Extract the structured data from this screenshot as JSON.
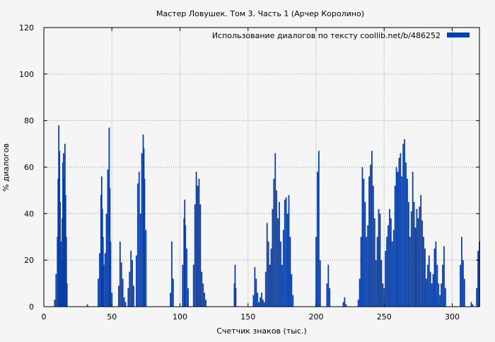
{
  "chart_data": {
    "type": "bar",
    "title": "Мастер Ловушек. Том 3. Часть 1 (Арчер Королино)",
    "xlabel": "Счетчик знаков (тыс.)",
    "ylabel": "% диалогов",
    "xlim": [
      0,
      320
    ],
    "ylim": [
      0,
      120
    ],
    "xticks": [
      0,
      50,
      100,
      150,
      200,
      250,
      300
    ],
    "yticks": [
      0,
      20,
      40,
      60,
      80,
      100,
      120
    ],
    "grid": true,
    "legend_position": "top-right",
    "colors": {
      "bar": "#0a3fa6",
      "grid": "#999999",
      "background": "#f5f5f5"
    },
    "series": [
      {
        "name": "Использование диалогов по тексту  coollib.net/b/486252",
        "points": [
          [
            8,
            3
          ],
          [
            9,
            14
          ],
          [
            10,
            30
          ],
          [
            10.5,
            55
          ],
          [
            11,
            78
          ],
          [
            11.5,
            67
          ],
          [
            12,
            45
          ],
          [
            12.5,
            28
          ],
          [
            13,
            20
          ],
          [
            13.5,
            38
          ],
          [
            14,
            62
          ],
          [
            14.5,
            66
          ],
          [
            15,
            55
          ],
          [
            15.5,
            70
          ],
          [
            16,
            48
          ],
          [
            16.5,
            30
          ],
          [
            17,
            10
          ],
          [
            32,
            1
          ],
          [
            40,
            12
          ],
          [
            41,
            23
          ],
          [
            42,
            48
          ],
          [
            42.5,
            56
          ],
          [
            43,
            42
          ],
          [
            43.5,
            30
          ],
          [
            44,
            18
          ],
          [
            45,
            23
          ],
          [
            46,
            40
          ],
          [
            47,
            59
          ],
          [
            48,
            77
          ],
          [
            48.5,
            51
          ],
          [
            49,
            28
          ],
          [
            50,
            6
          ],
          [
            55,
            9
          ],
          [
            56,
            28
          ],
          [
            57,
            19
          ],
          [
            58,
            12
          ],
          [
            59,
            4
          ],
          [
            60,
            2
          ],
          [
            62,
            8
          ],
          [
            63,
            15
          ],
          [
            64,
            24
          ],
          [
            65,
            20
          ],
          [
            66,
            9
          ],
          [
            68,
            22
          ],
          [
            69,
            53
          ],
          [
            70,
            58
          ],
          [
            71,
            40
          ],
          [
            72,
            66
          ],
          [
            73,
            74
          ],
          [
            73.5,
            68
          ],
          [
            74,
            55
          ],
          [
            75,
            33
          ],
          [
            93,
            6
          ],
          [
            94,
            28
          ],
          [
            95,
            12
          ],
          [
            102,
            18
          ],
          [
            103,
            38
          ],
          [
            103.5,
            46
          ],
          [
            104,
            35
          ],
          [
            105,
            25
          ],
          [
            106,
            8
          ],
          [
            110,
            18
          ],
          [
            111,
            44
          ],
          [
            112,
            58
          ],
          [
            113,
            52
          ],
          [
            114,
            55
          ],
          [
            115,
            44
          ],
          [
            116,
            15
          ],
          [
            117,
            10
          ],
          [
            118,
            6
          ],
          [
            119,
            3
          ],
          [
            140,
            10
          ],
          [
            140.5,
            18
          ],
          [
            141,
            8
          ],
          [
            154,
            5
          ],
          [
            155,
            17
          ],
          [
            156,
            12
          ],
          [
            157,
            6
          ],
          [
            158,
            2
          ],
          [
            159,
            4
          ],
          [
            160,
            6
          ],
          [
            161,
            3
          ],
          [
            162,
            2
          ],
          [
            163,
            15
          ],
          [
            164,
            36
          ],
          [
            165,
            28
          ],
          [
            166,
            18
          ],
          [
            167,
            25
          ],
          [
            168,
            42
          ],
          [
            169,
            55
          ],
          [
            170,
            66
          ],
          [
            171,
            50
          ],
          [
            172,
            38
          ],
          [
            173,
            45
          ],
          [
            174,
            28
          ],
          [
            175,
            18
          ],
          [
            176,
            33
          ],
          [
            177,
            46
          ],
          [
            178,
            47
          ],
          [
            179,
            40
          ],
          [
            180,
            48
          ],
          [
            181,
            30
          ],
          [
            182,
            14
          ],
          [
            183,
            5
          ],
          [
            200,
            30
          ],
          [
            201,
            58
          ],
          [
            202,
            67
          ],
          [
            203,
            20
          ],
          [
            208,
            10
          ],
          [
            209,
            18
          ],
          [
            210,
            8
          ],
          [
            220,
            2
          ],
          [
            221,
            4
          ],
          [
            222,
            1
          ],
          [
            231,
            3
          ],
          [
            232,
            12
          ],
          [
            233,
            30
          ],
          [
            234,
            60
          ],
          [
            235,
            55
          ],
          [
            236,
            45
          ],
          [
            237,
            30
          ],
          [
            238,
            35
          ],
          [
            239,
            56
          ],
          [
            240,
            61
          ],
          [
            241,
            67
          ],
          [
            242,
            52
          ],
          [
            243,
            38
          ],
          [
            244,
            20
          ],
          [
            245,
            30
          ],
          [
            246,
            42
          ],
          [
            247,
            40
          ],
          [
            248,
            20
          ],
          [
            249,
            10
          ],
          [
            250,
            8
          ],
          [
            251,
            24
          ],
          [
            252,
            30
          ],
          [
            253,
            35
          ],
          [
            254,
            42
          ],
          [
            255,
            38
          ],
          [
            256,
            28
          ],
          [
            257,
            33
          ],
          [
            258,
            52
          ],
          [
            259,
            60
          ],
          [
            260,
            58
          ],
          [
            261,
            64
          ],
          [
            262,
            66
          ],
          [
            263,
            56
          ],
          [
            264,
            70
          ],
          [
            265,
            72
          ],
          [
            266,
            62
          ],
          [
            267,
            55
          ],
          [
            268,
            45
          ],
          [
            269,
            30
          ],
          [
            270,
            41
          ],
          [
            271,
            58
          ],
          [
            272,
            45
          ],
          [
            273,
            34
          ],
          [
            274,
            42
          ],
          [
            275,
            38
          ],
          [
            276,
            43
          ],
          [
            277,
            48
          ],
          [
            278,
            37
          ],
          [
            279,
            30
          ],
          [
            280,
            25
          ],
          [
            281,
            12
          ],
          [
            282,
            18
          ],
          [
            283,
            22
          ],
          [
            284,
            15
          ],
          [
            285,
            10
          ],
          [
            286,
            14
          ],
          [
            287,
            25
          ],
          [
            288,
            28
          ],
          [
            289,
            18
          ],
          [
            290,
            10
          ],
          [
            291,
            5
          ],
          [
            292,
            10
          ],
          [
            293,
            18
          ],
          [
            294,
            26
          ],
          [
            295,
            8
          ],
          [
            306,
            18
          ],
          [
            307,
            30
          ],
          [
            308,
            20
          ],
          [
            309,
            12
          ],
          [
            314,
            2
          ],
          [
            315,
            1
          ],
          [
            318,
            8
          ],
          [
            319,
            24
          ],
          [
            320,
            28
          ]
        ]
      }
    ]
  }
}
